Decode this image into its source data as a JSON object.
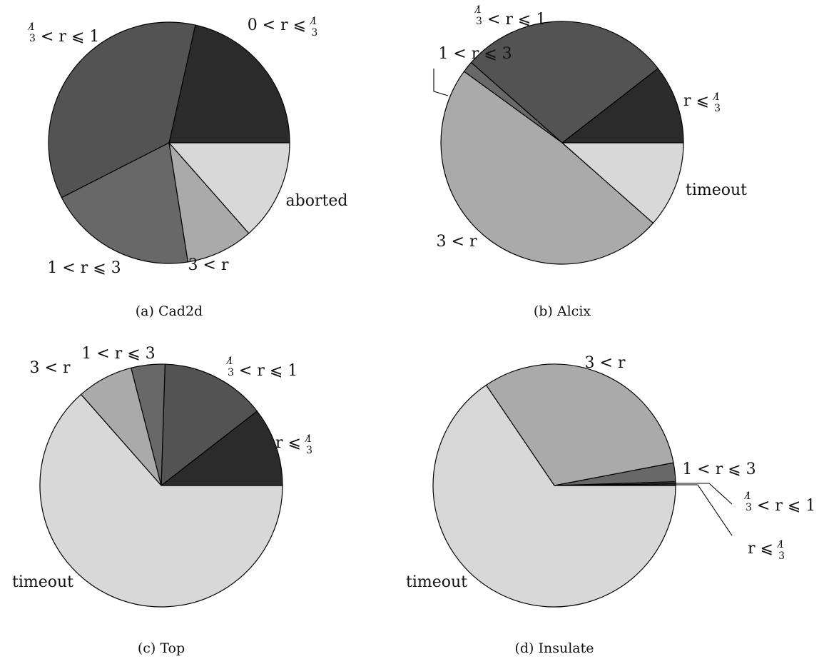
{
  "chart_data": [
    {
      "type": "pie",
      "caption": "(a) Cad2d",
      "slices": [
        {
          "label": "0 < r ⩽ ⅓",
          "value": 21.5,
          "color": "#2b2b2b"
        },
        {
          "label": "⅓ < r ⩽ 1",
          "value": 36.0,
          "color": "#535353"
        },
        {
          "label": "1 < r ⩽ 3",
          "value": 20.0,
          "color": "#686868"
        },
        {
          "label": "3 < r",
          "value": 9.0,
          "color": "#aaaaaa"
        },
        {
          "label": "aborted",
          "value": 13.5,
          "color": "#d8d8d8"
        }
      ]
    },
    {
      "type": "pie",
      "caption": "(b) Alcix",
      "slices": [
        {
          "label": "r ⩽ ⅓",
          "value": 10.5,
          "color": "#2b2b2b"
        },
        {
          "label": "⅓ < r ⩽ 1",
          "value": 28.0,
          "color": "#535353"
        },
        {
          "label": "1 < r ⩽ 3",
          "value": 1.5,
          "color": "#686868"
        },
        {
          "label": "3 < r",
          "value": 48.5,
          "color": "#aaaaaa"
        },
        {
          "label": "timeout",
          "value": 11.5,
          "color": "#d8d8d8"
        }
      ]
    },
    {
      "type": "pie",
      "caption": "(c) Top",
      "slices": [
        {
          "label": "r ⩽ ⅓",
          "value": 10.5,
          "color": "#2b2b2b"
        },
        {
          "label": "⅓ < r ⩽ 1",
          "value": 14.0,
          "color": "#535353"
        },
        {
          "label": "1 < r ⩽ 3",
          "value": 4.5,
          "color": "#686868"
        },
        {
          "label": "3 < r",
          "value": 7.5,
          "color": "#aaaaaa"
        },
        {
          "label": "timeout",
          "value": 63.5,
          "color": "#d8d8d8"
        }
      ]
    },
    {
      "type": "pie",
      "caption": "(d) Insulate",
      "slices": [
        {
          "label": "r ⩽ ⅓",
          "value": 0.25,
          "color": "#2b2b2b"
        },
        {
          "label": "⅓ < r ⩽ 1",
          "value": 0.25,
          "color": "#535353"
        },
        {
          "label": "1 < r ⩽ 3",
          "value": 2.5,
          "color": "#686868"
        },
        {
          "label": "3 < r",
          "value": 31.5,
          "color": "#aaaaaa"
        },
        {
          "label": "timeout",
          "value": 65.5,
          "color": "#d8d8d8"
        }
      ]
    }
  ]
}
